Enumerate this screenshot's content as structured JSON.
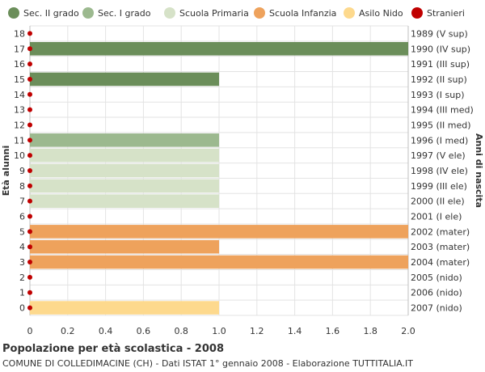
{
  "chart_data": {
    "type": "bar",
    "orientation": "horizontal",
    "title": "Popolazione per età scolastica - 2008",
    "subtitle": "COMUNE DI COLLEDIMACINE (CH) - Dati ISTAT 1° gennaio 2008 - Elaborazione TUTTITALIA.IT",
    "ylabel": "Età alunni",
    "ylabel_right": "Anni di nascita",
    "xlim": [
      0,
      2.0
    ],
    "x_ticks": [
      "0",
      "0.2",
      "0.4",
      "0.6",
      "0.8",
      "1.0",
      "1.2",
      "1.4",
      "1.6",
      "1.8",
      "2.0"
    ],
    "grid": true,
    "legend_position": "top",
    "legend": [
      {
        "label": "Sec. II grado",
        "color": "#6b8e5a"
      },
      {
        "label": "Sec. I grado",
        "color": "#9cb98f"
      },
      {
        "label": "Scuola Primaria",
        "color": "#d6e2c8"
      },
      {
        "label": "Scuola Infanzia",
        "color": "#eea25c"
      },
      {
        "label": "Asilo Nido",
        "color": "#fdd98d"
      },
      {
        "label": "Stranieri",
        "color": "#c00000"
      }
    ],
    "rows": [
      {
        "age": "18",
        "birth": "1989 (V sup)",
        "value": 0,
        "category": 0
      },
      {
        "age": "17",
        "birth": "1990 (IV sup)",
        "value": 2,
        "category": 0
      },
      {
        "age": "16",
        "birth": "1991 (III sup)",
        "value": 0,
        "category": 0
      },
      {
        "age": "15",
        "birth": "1992 (II sup)",
        "value": 1,
        "category": 0
      },
      {
        "age": "14",
        "birth": "1993 (I sup)",
        "value": 0,
        "category": 0
      },
      {
        "age": "13",
        "birth": "1994 (III med)",
        "value": 0,
        "category": 1
      },
      {
        "age": "12",
        "birth": "1995 (II med)",
        "value": 0,
        "category": 1
      },
      {
        "age": "11",
        "birth": "1996 (I med)",
        "value": 1,
        "category": 1
      },
      {
        "age": "10",
        "birth": "1997 (V ele)",
        "value": 1,
        "category": 2
      },
      {
        "age": "9",
        "birth": "1998 (IV ele)",
        "value": 1,
        "category": 2
      },
      {
        "age": "8",
        "birth": "1999 (III ele)",
        "value": 1,
        "category": 2
      },
      {
        "age": "7",
        "birth": "2000 (II ele)",
        "value": 1,
        "category": 2
      },
      {
        "age": "6",
        "birth": "2001 (I ele)",
        "value": 0,
        "category": 2
      },
      {
        "age": "5",
        "birth": "2002 (mater)",
        "value": 2,
        "category": 3
      },
      {
        "age": "4",
        "birth": "2003 (mater)",
        "value": 1,
        "category": 3
      },
      {
        "age": "3",
        "birth": "2004 (mater)",
        "value": 2,
        "category": 3
      },
      {
        "age": "2",
        "birth": "2005 (nido)",
        "value": 0,
        "category": 4
      },
      {
        "age": "1",
        "birth": "2006 (nido)",
        "value": 0,
        "category": 4
      },
      {
        "age": "0",
        "birth": "2007 (nido)",
        "value": 1,
        "category": 4
      }
    ],
    "stranieri": [
      0,
      0,
      0,
      0,
      0,
      0,
      0,
      0,
      0,
      0,
      0,
      0,
      0,
      0,
      0,
      0,
      0,
      0,
      0
    ]
  }
}
